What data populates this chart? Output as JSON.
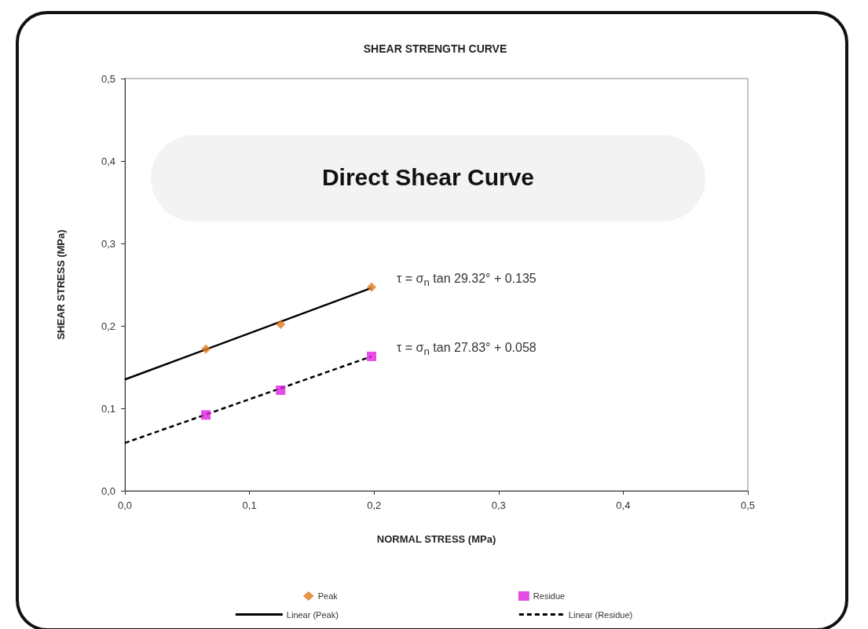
{
  "chart_data": {
    "type": "scatter",
    "title": "SHEAR STRENGTH CURVE",
    "xlabel": "NORMAL STRESS (MPa)",
    "ylabel": "SHEAR STRESS (MPa)",
    "xlim": [
      0,
      0.5
    ],
    "ylim": [
      0,
      0.5
    ],
    "xticks": [
      {
        "value": 0,
        "label": "0,0"
      },
      {
        "value": 0.1,
        "label": "0,1"
      },
      {
        "value": 0.2,
        "label": "0,2"
      },
      {
        "value": 0.3,
        "label": "0,3"
      },
      {
        "value": 0.4,
        "label": "0,4"
      },
      {
        "value": 0.5,
        "label": "0,5"
      }
    ],
    "yticks": [
      {
        "value": 0,
        "label": "0,0"
      },
      {
        "value": 0.1,
        "label": "0,1"
      },
      {
        "value": 0.2,
        "label": "0,2"
      },
      {
        "value": 0.3,
        "label": "0,3"
      },
      {
        "value": 0.4,
        "label": "0,4"
      },
      {
        "value": 0.5,
        "label": "0,5"
      }
    ],
    "grid": false,
    "legend": "bottom",
    "series": [
      {
        "name": "Peak",
        "type": "scatter",
        "color": "#e07b1f",
        "marker": "diamond",
        "x": [
          0.065,
          0.125,
          0.198
        ],
        "values": [
          0.172,
          0.202,
          0.247
        ]
      },
      {
        "name": "Residue",
        "type": "scatter",
        "color": "#e020e0",
        "marker": "square",
        "x": [
          0.065,
          0.125,
          0.198
        ],
        "values": [
          0.092,
          0.122,
          0.163
        ]
      },
      {
        "name": "Linear (Peak)",
        "type": "line",
        "color": "#000000",
        "line_style": "solid",
        "x": [
          0,
          0.198
        ],
        "values": [
          0.135,
          0.246
        ]
      },
      {
        "name": "Linear (Residue)",
        "type": "line",
        "color": "#000000",
        "line_style": "dashed",
        "x": [
          0,
          0.198
        ],
        "values": [
          0.058,
          0.163
        ]
      }
    ],
    "annotations": [
      "Direct Shear Curve",
      "τ = σ$_{n}$ tan 29.32° + 0.135",
      "τ = σ$_{n}$ tan 27.83° + 0.058"
    ]
  }
}
